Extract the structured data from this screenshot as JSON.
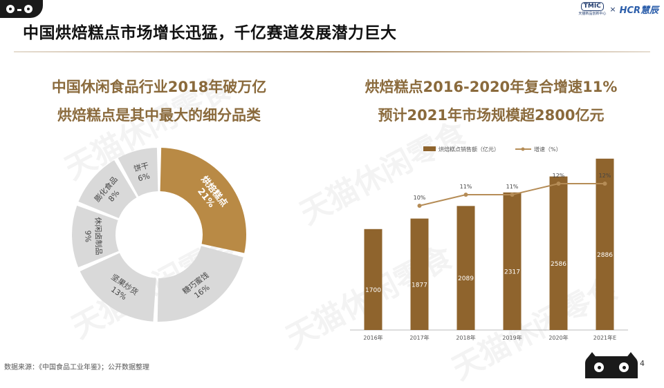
{
  "slide": {
    "title": "中国烘焙糕点市场增长迅猛，千亿赛道发展潜力巨大",
    "page_number": "4",
    "source": "数据来源：《中国食品工业年鉴》；公开数据整理",
    "partner": {
      "tmic": "TMIC",
      "tmic_sub": "天猫新品创新中心",
      "cross": "×",
      "hcr": "HCR慧辰"
    },
    "watermark": "天猫休闲零食"
  },
  "left_panel": {
    "headline1": "中国休闲食品行业2018年破万亿",
    "headline2": "烘焙糕点是其中最大的细分品类"
  },
  "right_panel": {
    "headline1": "烘焙糕点2016-2020年复合增速11%",
    "headline2": "预计2021年市场规模超2800亿元"
  },
  "chart_data": [
    {
      "type": "pie",
      "style": "donut",
      "title": "",
      "slices": [
        {
          "label": "烘焙糕点",
          "value": 21,
          "value_label": "21%",
          "color": "#b98a45",
          "highlight": true
        },
        {
          "label": "糖巧蜜饯",
          "value": 16,
          "value_label": "16%",
          "color": "#d9d9d9"
        },
        {
          "label": "坚果炒货",
          "value": 13,
          "value_label": "13%",
          "color": "#d9d9d9"
        },
        {
          "label": "休闲卤制品",
          "value": 9,
          "value_label": "9%",
          "color": "#d9d9d9"
        },
        {
          "label": "膨化食品",
          "value": 8,
          "value_label": "8%",
          "color": "#d9d9d9"
        },
        {
          "label": "饼干",
          "value": 6,
          "value_label": "6%",
          "color": "#d9d9d9"
        }
      ]
    },
    {
      "type": "bar",
      "title": "",
      "categories": [
        "2016年",
        "2017年",
        "2018年",
        "2019年",
        "2020年",
        "2021年E"
      ],
      "legend_position": "top",
      "grid": false,
      "series": [
        {
          "name": "烘焙糕点销售额（亿元）",
          "type": "bar",
          "values": [
            1700,
            1877,
            2089,
            2317,
            2586,
            2886
          ],
          "labels": [
            "1700",
            "1877",
            "2089",
            "2317",
            "2586",
            "2886"
          ],
          "color": "#8f642d"
        },
        {
          "name": "增速（%）",
          "type": "line",
          "values": [
            null,
            10,
            11,
            11,
            12,
            12
          ],
          "labels": [
            "",
            "10%",
            "11%",
            "11%",
            "12%",
            "12%"
          ],
          "color": "#b58c56"
        }
      ],
      "ylim": [
        0,
        3000
      ]
    }
  ]
}
